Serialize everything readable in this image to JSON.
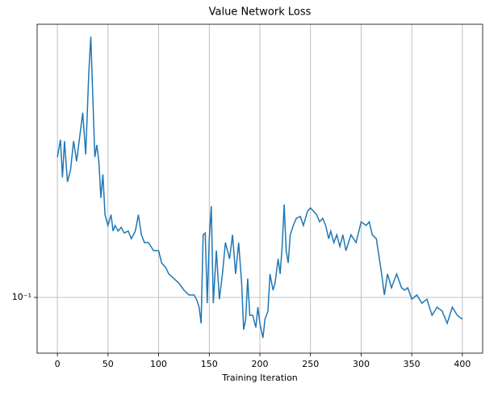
{
  "chart_data": {
    "type": "line",
    "title": "Value Network Loss",
    "x_label": "Training Iteration",
    "x": [
      0,
      3,
      5,
      7,
      10,
      13,
      16,
      19,
      22,
      25,
      28,
      31,
      33,
      35,
      37,
      39,
      41,
      43,
      45,
      47,
      50,
      53,
      55,
      57,
      60,
      63,
      66,
      70,
      73,
      77,
      80,
      83,
      86,
      90,
      95,
      100,
      103,
      107,
      110,
      115,
      120,
      125,
      130,
      135,
      138,
      140,
      142,
      144,
      146,
      148,
      150,
      152,
      154,
      157,
      160,
      163,
      166,
      170,
      173,
      176,
      179,
      182,
      184,
      186,
      188,
      190,
      193,
      196,
      198,
      200,
      203,
      205,
      208,
      210,
      213,
      215,
      218,
      220,
      222,
      224,
      226,
      228,
      230,
      233,
      236,
      240,
      243,
      247,
      250,
      253,
      256,
      259,
      262,
      265,
      268,
      270,
      273,
      276,
      279,
      282,
      285,
      290,
      295,
      300,
      305,
      308,
      311,
      315,
      320,
      323,
      326,
      330,
      335,
      340,
      343,
      346,
      350,
      355,
      360,
      365,
      370,
      375,
      380,
      385,
      390,
      395,
      400
    ],
    "series": [
      {
        "color": "#1f77b4",
        "values": [
          0.177,
          0.19,
          0.163,
          0.189,
          0.16,
          0.168,
          0.189,
          0.174,
          0.192,
          0.212,
          0.179,
          0.249,
          0.289,
          0.226,
          0.177,
          0.186,
          0.174,
          0.15,
          0.165,
          0.14,
          0.134,
          0.14,
          0.131,
          0.134,
          0.131,
          0.133,
          0.13,
          0.131,
          0.127,
          0.131,
          0.14,
          0.129,
          0.125,
          0.125,
          0.121,
          0.121,
          0.115,
          0.113,
          0.11,
          0.108,
          0.106,
          0.103,
          0.101,
          0.101,
          0.0987,
          0.0961,
          0.09,
          0.129,
          0.13,
          0.0977,
          0.127,
          0.145,
          0.0977,
          0.121,
          0.0993,
          0.11,
          0.125,
          0.117,
          0.129,
          0.11,
          0.125,
          0.106,
          0.0877,
          0.0915,
          0.108,
          0.093,
          0.093,
          0.0885,
          0.0961,
          0.09,
          0.0848,
          0.0915,
          0.0946,
          0.11,
          0.103,
          0.106,
          0.117,
          0.11,
          0.123,
          0.146,
          0.121,
          0.115,
          0.129,
          0.134,
          0.138,
          0.139,
          0.134,
          0.142,
          0.144,
          0.142,
          0.14,
          0.136,
          0.138,
          0.134,
          0.127,
          0.131,
          0.125,
          0.129,
          0.123,
          0.129,
          0.121,
          0.129,
          0.125,
          0.136,
          0.134,
          0.136,
          0.129,
          0.127,
          0.111,
          0.101,
          0.11,
          0.104,
          0.11,
          0.104,
          0.103,
          0.104,
          0.0993,
          0.101,
          0.0977,
          0.0993,
          0.093,
          0.0961,
          0.0946,
          0.09,
          0.0961,
          0.093,
          0.0915
        ]
      }
    ],
    "xlim": [
      -20,
      420
    ],
    "xticks": [
      0,
      50,
      100,
      150,
      200,
      250,
      300,
      350,
      400
    ],
    "ylim": [
      0.0797,
      0.304
    ],
    "yticks": [
      {
        "value": 0.1,
        "label": "10⁻¹"
      }
    ],
    "log_y": true,
    "grid": true
  }
}
